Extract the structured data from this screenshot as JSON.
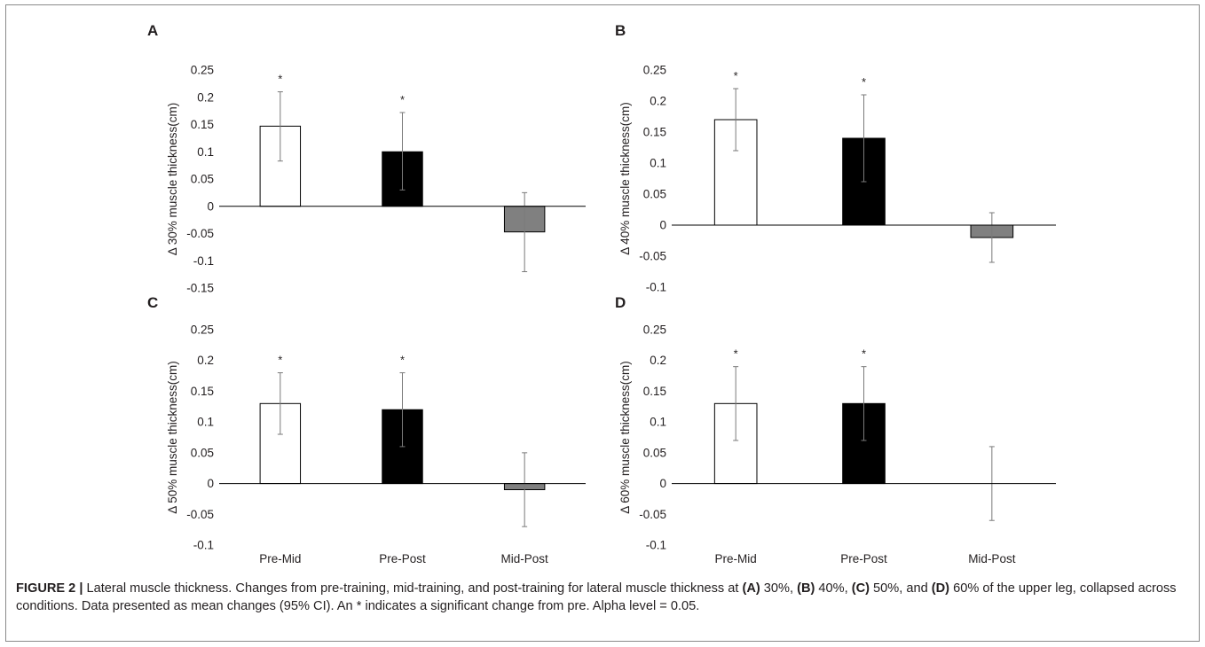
{
  "chart_data": [
    {
      "type": "bar",
      "panel_label": "A",
      "categories": [
        "Pre-Mid",
        "Pre-Post",
        "Mid-Post"
      ],
      "values": [
        0.147,
        0.1,
        -0.047
      ],
      "ci_low": [
        0.083,
        0.03,
        -0.12
      ],
      "ci_high": [
        0.21,
        0.172,
        0.025
      ],
      "significant": [
        true,
        true,
        false
      ],
      "bar_colors": [
        "#ffffff",
        "#000000",
        "#808080"
      ],
      "ylabel": "Δ 30% muscle thickness(cm)",
      "ylim": [
        -0.15,
        0.25
      ],
      "yticks": [
        -0.15,
        -0.1,
        -0.05,
        0,
        0.05,
        0.1,
        0.15,
        0.2,
        0.25
      ],
      "ytick_labels": [
        "-0.15",
        "-0.1",
        "-0.05",
        "0",
        "0.05",
        "0.1",
        "0.15",
        "0.2",
        "0.25"
      ],
      "grid": false
    },
    {
      "type": "bar",
      "panel_label": "B",
      "categories": [
        "Pre-Mid",
        "Pre-Post",
        "Mid-Post"
      ],
      "values": [
        0.17,
        0.14,
        -0.02
      ],
      "ci_low": [
        0.12,
        0.07,
        -0.06
      ],
      "ci_high": [
        0.22,
        0.21,
        0.02
      ],
      "significant": [
        true,
        true,
        false
      ],
      "bar_colors": [
        "#ffffff",
        "#000000",
        "#808080"
      ],
      "ylabel": "Δ 40% muscle thickness(cm)",
      "ylim": [
        -0.1,
        0.25
      ],
      "yticks": [
        -0.1,
        -0.05,
        0,
        0.05,
        0.1,
        0.15,
        0.2,
        0.25
      ],
      "ytick_labels": [
        "-0.1",
        "-0.05",
        "0",
        "0.05",
        "0.1",
        "0.15",
        "0.2",
        "0.25"
      ],
      "grid": false
    },
    {
      "type": "bar",
      "panel_label": "C",
      "categories": [
        "Pre-Mid",
        "Pre-Post",
        "Mid-Post"
      ],
      "values": [
        0.13,
        0.12,
        -0.01
      ],
      "ci_low": [
        0.08,
        0.06,
        -0.07
      ],
      "ci_high": [
        0.18,
        0.18,
        0.05
      ],
      "significant": [
        true,
        true,
        false
      ],
      "bar_colors": [
        "#ffffff",
        "#000000",
        "#808080"
      ],
      "ylabel": "Δ 50% muscle thickness(cm)",
      "ylim": [
        -0.1,
        0.25
      ],
      "yticks": [
        -0.1,
        -0.05,
        0,
        0.05,
        0.1,
        0.15,
        0.2,
        0.25
      ],
      "ytick_labels": [
        "-0.1",
        "-0.05",
        "0",
        "0.05",
        "0.1",
        "0.15",
        "0.2",
        "0.25"
      ],
      "grid": false
    },
    {
      "type": "bar",
      "panel_label": "D",
      "categories": [
        "Pre-Mid",
        "Pre-Post",
        "Mid-Post"
      ],
      "values": [
        0.13,
        0.13,
        0
      ],
      "ci_low": [
        0.07,
        0.07,
        -0.06
      ],
      "ci_high": [
        0.19,
        0.19,
        0.06
      ],
      "significant": [
        true,
        true,
        false
      ],
      "bar_colors": [
        "#ffffff",
        "#000000",
        "#808080"
      ],
      "ylabel": "Δ 60% muscle thickness(cm)",
      "ylim": [
        -0.1,
        0.25
      ],
      "yticks": [
        -0.1,
        -0.05,
        0,
        0.05,
        0.1,
        0.15,
        0.2,
        0.25
      ],
      "ytick_labels": [
        "-0.1",
        "-0.05",
        "0",
        "0.05",
        "0.1",
        "0.15",
        "0.2",
        "0.25"
      ],
      "grid": false
    }
  ],
  "significance_marker": "*",
  "caption": {
    "lead": "FIGURE 2 |",
    "text_1": " Lateral muscle thickness. Changes from pre-training, mid-training, and post-training for lateral muscle thickness at ",
    "a": "(A)",
    "text_2": " 30%, ",
    "b": "(B)",
    "text_3": " 40%, ",
    "c": "(C)",
    "text_4": " 50%, and ",
    "d": "(D)",
    "text_5": " 60% of the upper leg, collapsed across conditions. Data presented as mean changes (95% CI). An * indicates a significant change from pre. Alpha level = 0.05."
  }
}
